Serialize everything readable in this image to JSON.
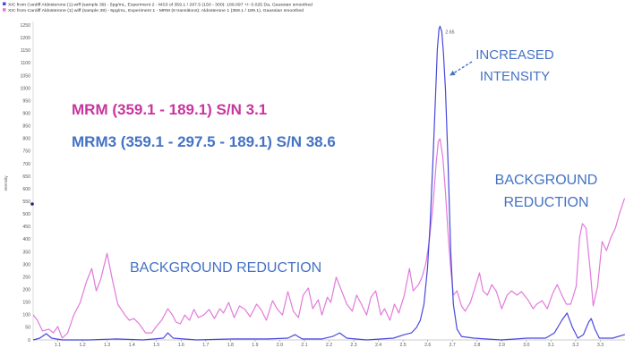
{
  "chart_data": {
    "type": "line",
    "ylabel": "Intensity",
    "xlim": [
      1.0,
      3.4
    ],
    "ylim": [
      0,
      1265
    ],
    "x_ticks": [
      "1.1",
      "1.2",
      "1.3",
      "1.4",
      "1.5",
      "1.6",
      "1.7",
      "1.8",
      "1.9",
      "2.0",
      "2.1",
      "2.2",
      "2.3",
      "2.4",
      "2.5",
      "2.6",
      "2.7",
      "2.8",
      "2.9",
      "3.0",
      "3.1",
      "3.2",
      "3.3"
    ],
    "y_ticks": [
      0,
      50,
      100,
      150,
      200,
      250,
      300,
      350,
      400,
      450,
      500,
      550,
      600,
      650,
      700,
      750,
      800,
      850,
      900,
      950,
      1000,
      1050,
      1100,
      1150,
      1200,
      1250
    ],
    "grid": false,
    "legend_position": "top-left",
    "series": [
      {
        "name": "XIC from Cardiff Aldosterone (1).wiff (sample 39) - 5pg/mL, Experiment 2 - MS3 of 359.1 / 297.5 (150 - 300): 189.097 +/- 0.025 Da, Gaussian smoothed",
        "color": "#4848DC",
        "x": [
          1.0,
          1.027,
          1.053,
          1.075,
          1.118,
          1.227,
          1.336,
          1.445,
          1.528,
          1.546,
          1.568,
          1.663,
          1.808,
          1.953,
          2.033,
          2.062,
          2.091,
          2.171,
          2.214,
          2.243,
          2.272,
          2.352,
          2.461,
          2.505,
          2.534,
          2.555,
          2.57,
          2.585,
          2.599,
          2.61,
          2.621,
          2.632,
          2.639,
          2.646,
          2.65,
          2.657,
          2.664,
          2.672,
          2.683,
          2.693,
          2.704,
          2.719,
          2.737,
          2.788,
          2.897,
          3.006,
          3.078,
          3.114,
          3.144,
          3.165,
          3.187,
          3.209,
          3.231,
          3.253,
          3.263,
          3.278,
          3.296,
          3.35,
          3.398
        ],
        "y": [
          0,
          7,
          25,
          7,
          0,
          0,
          4,
          0,
          7,
          28,
          7,
          0,
          4,
          4,
          7,
          21,
          4,
          4,
          14,
          28,
          7,
          0,
          7,
          21,
          28,
          50,
          78,
          142,
          284,
          462,
          710,
          977,
          1154,
          1236,
          1246,
          1225,
          1136,
          994,
          692,
          355,
          142,
          43,
          14,
          7,
          0,
          7,
          7,
          28,
          78,
          107,
          50,
          7,
          21,
          71,
          85,
          43,
          7,
          7,
          21
        ]
      },
      {
        "name": "XIC from Cardiff Aldosterone (1).wiff (sample 39) - 5pg/mL, Experiment 1 - MRM (6 transitions): Aldosterone 1 (359.1 / 189.1), Gaussian smoothed",
        "color": "#E17ADB",
        "x": [
          1.0,
          1.017,
          1.038,
          1.064,
          1.082,
          1.1,
          1.118,
          1.14,
          1.165,
          1.191,
          1.216,
          1.238,
          1.256,
          1.274,
          1.3,
          1.321,
          1.343,
          1.372,
          1.39,
          1.409,
          1.43,
          1.456,
          1.481,
          1.499,
          1.521,
          1.546,
          1.565,
          1.579,
          1.597,
          1.615,
          1.634,
          1.652,
          1.67,
          1.692,
          1.714,
          1.735,
          1.757,
          1.772,
          1.793,
          1.815,
          1.837,
          1.859,
          1.88,
          1.906,
          1.924,
          1.946,
          1.971,
          1.989,
          2.011,
          2.033,
          2.055,
          2.076,
          2.095,
          2.116,
          2.134,
          2.156,
          2.171,
          2.193,
          2.207,
          2.229,
          2.251,
          2.272,
          2.294,
          2.312,
          2.331,
          2.352,
          2.37,
          2.389,
          2.41,
          2.425,
          2.447,
          2.465,
          2.483,
          2.505,
          2.526,
          2.541,
          2.563,
          2.577,
          2.592,
          2.606,
          2.621,
          2.635,
          2.643,
          2.65,
          2.661,
          2.672,
          2.683,
          2.693,
          2.704,
          2.719,
          2.737,
          2.752,
          2.773,
          2.788,
          2.81,
          2.824,
          2.842,
          2.86,
          2.879,
          2.9,
          2.922,
          2.94,
          2.962,
          2.98,
          3.006,
          3.027,
          3.042,
          3.064,
          3.085,
          3.107,
          3.125,
          3.144,
          3.162,
          3.18,
          3.202,
          3.216,
          3.227,
          3.242,
          3.26,
          3.271,
          3.289,
          3.307,
          3.325,
          3.343,
          3.361,
          3.376,
          3.398
        ],
        "y": [
          100,
          78,
          36,
          43,
          28,
          53,
          7,
          28,
          99,
          149,
          231,
          284,
          195,
          241,
          344,
          241,
          142,
          99,
          78,
          85,
          64,
          28,
          28,
          53,
          78,
          124,
          99,
          71,
          64,
          99,
          78,
          121,
          89,
          99,
          121,
          85,
          124,
          107,
          149,
          89,
          135,
          121,
          92,
          142,
          121,
          78,
          156,
          124,
          99,
          192,
          114,
          89,
          178,
          206,
          124,
          160,
          99,
          170,
          149,
          249,
          195,
          142,
          114,
          178,
          142,
          99,
          170,
          195,
          99,
          124,
          78,
          142,
          107,
          178,
          284,
          195,
          220,
          249,
          302,
          391,
          533,
          710,
          788,
          799,
          728,
          586,
          419,
          284,
          178,
          195,
          135,
          114,
          149,
          195,
          266,
          195,
          178,
          220,
          192,
          124,
          178,
          195,
          178,
          192,
          160,
          124,
          142,
          156,
          124,
          185,
          220,
          178,
          142,
          142,
          213,
          408,
          462,
          444,
          266,
          135,
          213,
          391,
          355,
          408,
          444,
          497,
          561
        ]
      }
    ],
    "peak_label": {
      "text": "2.65",
      "x": 2.65,
      "y": 1246
    },
    "annotations": {
      "increased_intensity": {
        "lines": [
          "INCREASED",
          "INTENSITY"
        ],
        "color": "#4472C4"
      },
      "mrm_label": {
        "text": "MRM (359.1 - 189.1) S/N 3.1",
        "color": "#C8359E"
      },
      "mrm3_label": {
        "text": "MRM3 (359.1 - 297.5 - 189.1) S/N 38.6",
        "color": "#4472C4"
      },
      "background_reduction_left": {
        "text": "BACKGROUND REDUCTION",
        "color": "#4472C4"
      },
      "background_reduction_right": {
        "lines": [
          "BACKGROUND",
          "REDUCTION"
        ],
        "color": "#4472C4"
      }
    }
  }
}
